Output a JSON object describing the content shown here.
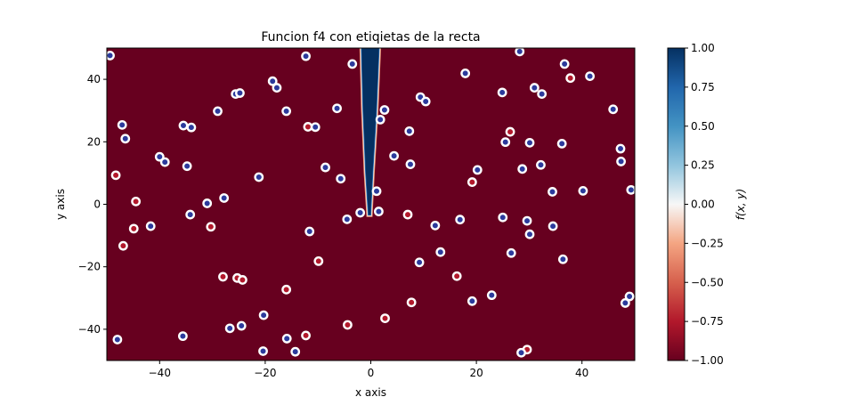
{
  "chart_data": {
    "type": "heatmap",
    "title": "Funcion f4 con etiqietas de la recta",
    "xlabel": "x axis",
    "ylabel": "y axis",
    "xlim": [
      -50,
      50
    ],
    "ylim": [
      -50,
      50
    ],
    "x_ticks": [
      -40,
      -20,
      0,
      20,
      40
    ],
    "y_ticks": [
      -40,
      -20,
      0,
      20,
      40
    ],
    "field": {
      "background_value": -1.0,
      "band_value": 1.0,
      "band_polygon": [
        [
          -1.8,
          50
        ],
        [
          1.6,
          50
        ],
        [
          1.1,
          30
        ],
        [
          0.4,
          10
        ],
        [
          0.0,
          -3.5
        ],
        [
          -0.5,
          -3.5
        ],
        [
          -1.0,
          10
        ],
        [
          -1.5,
          30
        ]
      ]
    },
    "colorbar": {
      "label": "f(x, y)",
      "range": [
        -1.0,
        1.0
      ],
      "ticks": [
        -1.0,
        -0.75,
        -0.5,
        -0.25,
        0.0,
        0.25,
        0.5,
        0.75,
        1.0
      ],
      "tick_labels": [
        "−1.00",
        "−0.75",
        "−0.50",
        "−0.25",
        "0.00",
        "0.25",
        "0.50",
        "0.75",
        "1.00"
      ],
      "colormap": "RdBu"
    },
    "series": [
      {
        "label_value": -1,
        "color": "#67001f",
        "points": [
          [
            -48.3,
            9.3
          ],
          [
            -46.9,
            -13.3
          ],
          [
            -44.9,
            -7.8
          ],
          [
            -44.5,
            0.9
          ],
          [
            -30.3,
            -7.2
          ],
          [
            -28.0,
            -23.2
          ],
          [
            -25.3,
            -23.6
          ],
          [
            -24.3,
            -24.2
          ],
          [
            -16.0,
            -27.3
          ],
          [
            -12.3,
            -42.0
          ],
          [
            -11.9,
            24.8
          ],
          [
            -9.9,
            -18.2
          ],
          [
            -4.4,
            -38.6
          ],
          [
            2.7,
            -36.5
          ],
          [
            7.0,
            -3.3
          ],
          [
            7.7,
            -31.4
          ],
          [
            16.3,
            -23.0
          ],
          [
            19.2,
            7.1
          ],
          [
            26.4,
            23.2
          ],
          [
            37.8,
            40.4
          ],
          [
            29.6,
            -46.5
          ]
        ]
      },
      {
        "label_value": 1,
        "color": "#053061",
        "points": [
          [
            -49.4,
            47.6
          ],
          [
            -47.1,
            25.4
          ],
          [
            -46.5,
            21.0
          ],
          [
            -40.0,
            15.2
          ],
          [
            -39.0,
            13.5
          ],
          [
            -35.5,
            25.2
          ],
          [
            -34.0,
            24.6
          ],
          [
            -34.8,
            12.2
          ],
          [
            -34.2,
            -3.3
          ],
          [
            -31.0,
            0.3
          ],
          [
            -27.8,
            2.0
          ],
          [
            -29.0,
            29.8
          ],
          [
            -41.7,
            -7.0
          ],
          [
            -48.0,
            -43.3
          ],
          [
            -25.6,
            35.3
          ],
          [
            -24.8,
            35.6
          ],
          [
            -26.7,
            -39.7
          ],
          [
            -24.5,
            -38.9
          ],
          [
            -21.2,
            8.7
          ],
          [
            -18.6,
            39.4
          ],
          [
            -17.8,
            37.3
          ],
          [
            -16.0,
            29.8
          ],
          [
            -12.3,
            47.4
          ],
          [
            -11.6,
            -8.7
          ],
          [
            -10.5,
            24.7
          ],
          [
            -15.9,
            -43.0
          ],
          [
            -14.3,
            -47.2
          ],
          [
            -20.3,
            -35.5
          ],
          [
            -20.4,
            -47.0
          ],
          [
            -35.6,
            -42.2
          ],
          [
            -8.6,
            11.8
          ],
          [
            -6.4,
            30.7
          ],
          [
            -5.7,
            8.2
          ],
          [
            -4.5,
            -4.8
          ],
          [
            -3.5,
            44.9
          ],
          [
            -2.0,
            -2.7
          ],
          [
            1.1,
            4.2
          ],
          [
            1.5,
            -2.3
          ],
          [
            1.8,
            27.1
          ],
          [
            2.6,
            30.2
          ],
          [
            4.4,
            15.5
          ],
          [
            7.3,
            23.4
          ],
          [
            7.5,
            12.8
          ],
          [
            9.2,
            -18.6
          ],
          [
            9.4,
            34.3
          ],
          [
            10.4,
            32.9
          ],
          [
            12.2,
            -6.8
          ],
          [
            13.2,
            -15.3
          ],
          [
            16.9,
            -4.9
          ],
          [
            17.9,
            41.9
          ],
          [
            19.2,
            -31.0
          ],
          [
            20.2,
            11.0
          ],
          [
            22.9,
            -29.1
          ],
          [
            24.9,
            35.8
          ],
          [
            25.0,
            -4.2
          ],
          [
            25.5,
            19.9
          ],
          [
            26.6,
            -15.6
          ],
          [
            28.2,
            48.9
          ],
          [
            28.5,
            -47.5
          ],
          [
            28.7,
            11.3
          ],
          [
            29.6,
            -5.3
          ],
          [
            30.1,
            -9.6
          ],
          [
            30.1,
            19.7
          ],
          [
            31.0,
            37.3
          ],
          [
            32.2,
            12.6
          ],
          [
            32.4,
            35.3
          ],
          [
            34.4,
            4.0
          ],
          [
            34.5,
            -7.0
          ],
          [
            36.2,
            19.4
          ],
          [
            36.4,
            -17.6
          ],
          [
            36.7,
            44.9
          ],
          [
            40.2,
            4.3
          ],
          [
            41.5,
            41.0
          ],
          [
            45.9,
            30.4
          ],
          [
            47.3,
            17.8
          ],
          [
            47.4,
            13.7
          ],
          [
            48.2,
            -31.6
          ],
          [
            49.0,
            -29.5
          ],
          [
            49.3,
            4.6
          ]
        ]
      }
    ]
  }
}
